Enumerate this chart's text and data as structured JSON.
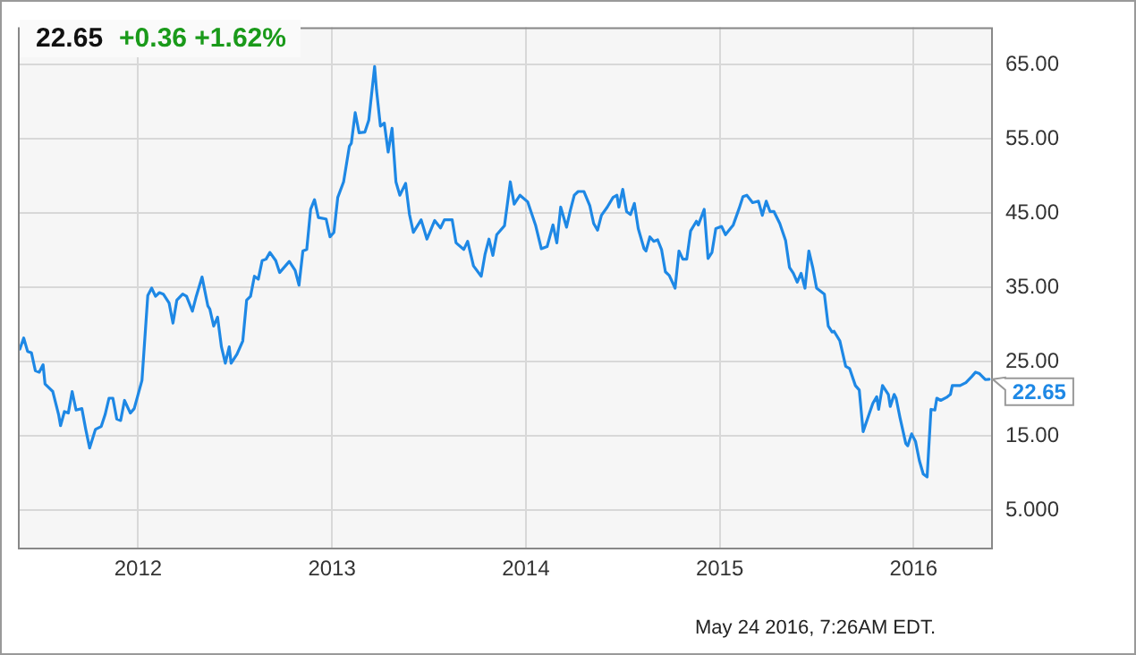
{
  "chart_data": {
    "type": "line",
    "title": "22.65",
    "subtitle": "+0.36 +1.62%",
    "annotations": [
      "May 24 2016, 7:26AM EDT.",
      {
        "text": "22.65",
        "x": 2016.39,
        "y": 22.65
      }
    ],
    "x": [
      2011.39,
      2011.41,
      2011.43,
      2011.45,
      2011.47,
      2011.49,
      2011.51,
      2011.52,
      2011.56,
      2011.59,
      2011.6,
      2011.62,
      2011.64,
      2011.66,
      2011.68,
      2011.71,
      2011.73,
      2011.75,
      2011.78,
      2011.81,
      2011.83,
      2011.85,
      2011.87,
      2011.89,
      2011.91,
      2011.93,
      2011.96,
      2011.98,
      2012.02,
      2012.05,
      2012.07,
      2012.09,
      2012.11,
      2012.13,
      2012.16,
      2012.18,
      2012.2,
      2012.23,
      2012.25,
      2012.28,
      2012.3,
      2012.33,
      2012.36,
      2012.37,
      2012.39,
      2012.41,
      2012.43,
      2012.45,
      2012.47,
      2012.48,
      2012.51,
      2012.54,
      2012.56,
      2012.58,
      2012.6,
      2012.62,
      2012.64,
      2012.66,
      2012.68,
      2012.71,
      2012.73,
      2012.75,
      2012.78,
      2012.81,
      2012.83,
      2012.85,
      2012.87,
      2012.89,
      2012.91,
      2012.93,
      2012.97,
      2012.99,
      2013.01,
      2013.03,
      2013.06,
      2013.09,
      2013.1,
      2013.12,
      2013.14,
      2013.17,
      2013.19,
      2013.22,
      2013.23,
      2013.25,
      2013.27,
      2013.29,
      2013.31,
      2013.33,
      2013.35,
      2013.38,
      2013.4,
      2013.42,
      2013.46,
      2013.49,
      2013.53,
      2013.56,
      2013.58,
      2013.62,
      2013.64,
      2013.68,
      2013.7,
      2013.73,
      2013.77,
      2013.79,
      2013.81,
      2013.83,
      2013.85,
      2013.89,
      2013.92,
      2013.94,
      2013.97,
      2014.01,
      2014.05,
      2014.08,
      2014.11,
      2014.14,
      2014.16,
      2014.18,
      2014.21,
      2014.23,
      2014.25,
      2014.27,
      2014.3,
      2014.33,
      2014.35,
      2014.37,
      2014.39,
      2014.42,
      2014.45,
      2014.47,
      2014.48,
      2014.5,
      2014.52,
      2014.54,
      2014.56,
      2014.58,
      2014.61,
      2014.62,
      2014.64,
      2014.66,
      2014.68,
      2014.7,
      2014.72,
      2014.74,
      2014.77,
      2014.79,
      2014.81,
      2014.83,
      2014.85,
      2014.88,
      2014.89,
      2014.92,
      2014.94,
      2014.96,
      2014.98,
      2015.01,
      2015.03,
      2015.07,
      2015.1,
      2015.12,
      2015.14,
      2015.17,
      2015.2,
      2015.22,
      2015.24,
      2015.26,
      2015.28,
      2015.31,
      2015.34,
      2015.36,
      2015.38,
      2015.4,
      2015.42,
      2015.44,
      2015.46,
      2015.48,
      2015.5,
      2015.54,
      2015.56,
      2015.58,
      2015.59,
      2015.62,
      2015.65,
      2015.67,
      2015.7,
      2015.72,
      2015.74,
      2015.77,
      2015.79,
      2015.81,
      2015.82,
      2015.84,
      2015.87,
      2015.88,
      2015.9,
      2015.91,
      2015.93,
      2015.96,
      2015.97,
      2015.99,
      2016.01,
      2016.03,
      2016.05,
      2016.07,
      2016.09,
      2016.11,
      2016.12,
      2016.14,
      2016.17,
      2016.19,
      2016.2,
      2016.24,
      2016.27,
      2016.3,
      2016.32,
      2016.34,
      2016.37,
      2016.39
    ],
    "series": [
      {
        "color": "#1e88e5",
        "values": [
          26.7,
          28.2,
          26.4,
          26.2,
          23.8,
          23.6,
          24.6,
          22.0,
          21.0,
          17.9,
          16.4,
          18.3,
          18.1,
          21.0,
          18.5,
          18.7,
          15.9,
          13.4,
          15.9,
          16.3,
          17.9,
          20.1,
          20.1,
          17.3,
          17.1,
          19.8,
          18.1,
          18.7,
          22.5,
          33.9,
          34.9,
          33.8,
          34.3,
          34.1,
          32.9,
          30.2,
          33.3,
          34.1,
          33.8,
          31.8,
          33.8,
          36.4,
          32.5,
          32.1,
          29.8,
          31.0,
          27.0,
          24.8,
          27.0,
          24.8,
          26.0,
          27.8,
          33.3,
          33.8,
          36.5,
          36.1,
          38.6,
          38.8,
          39.7,
          38.6,
          37.0,
          37.6,
          38.5,
          37.3,
          35.3,
          39.9,
          40.1,
          45.5,
          46.8,
          44.4,
          44.2,
          41.8,
          42.4,
          47.1,
          49.2,
          54.0,
          54.4,
          58.5,
          55.8,
          55.9,
          57.5,
          64.7,
          61.5,
          56.7,
          57.1,
          53.2,
          56.4,
          49.2,
          47.4,
          49.0,
          44.8,
          42.4,
          44.1,
          41.5,
          44.0,
          43.0,
          44.1,
          44.1,
          41.0,
          40.1,
          41.2,
          37.9,
          36.5,
          39.5,
          41.5,
          39.3,
          42.1,
          43.3,
          49.2,
          46.2,
          47.4,
          46.5,
          43.4,
          40.2,
          40.5,
          43.4,
          41.0,
          45.8,
          43.1,
          45.4,
          47.4,
          47.9,
          47.9,
          46.0,
          43.6,
          42.7,
          44.7,
          45.8,
          47.1,
          47.4,
          45.8,
          48.2,
          45.2,
          44.8,
          46.3,
          42.9,
          40.2,
          39.9,
          41.8,
          41.2,
          41.4,
          40.1,
          37.1,
          36.6,
          34.9,
          39.9,
          38.8,
          38.8,
          42.6,
          43.9,
          43.4,
          45.5,
          38.9,
          39.7,
          42.9,
          43.2,
          42.1,
          43.4,
          45.6,
          47.2,
          47.4,
          46.4,
          46.6,
          44.7,
          46.6,
          45.2,
          45.2,
          43.6,
          41.3,
          37.7,
          36.9,
          35.7,
          36.9,
          34.9,
          39.9,
          37.7,
          34.9,
          34.1,
          29.8,
          29.0,
          29.1,
          27.8,
          24.4,
          24.1,
          21.8,
          21.2,
          15.6,
          17.9,
          19.4,
          20.3,
          18.6,
          21.8,
          20.6,
          19.0,
          20.6,
          20.1,
          17.5,
          14.0,
          13.7,
          15.3,
          14.3,
          11.7,
          9.9,
          9.5,
          18.6,
          18.5,
          20.1,
          19.8,
          20.2,
          20.6,
          21.8,
          21.8,
          22.2,
          23.0,
          23.6,
          23.4,
          22.6,
          22.65
        ]
      }
    ],
    "xlim": [
      2011.38,
      2016.4
    ],
    "xticks": [
      2012,
      2013,
      2014,
      2015,
      2016
    ],
    "ylim": [
      0,
      70
    ],
    "yticks": [
      {
        "value": 5,
        "label": "5.000"
      },
      {
        "value": 15,
        "label": "15.00"
      },
      {
        "value": 25,
        "label": "25.00"
      },
      {
        "value": 35,
        "label": "35.00"
      },
      {
        "value": 45,
        "label": "45.00"
      },
      {
        "value": 55,
        "label": "55.00"
      },
      {
        "value": 65,
        "label": "65.00"
      }
    ],
    "grid": true,
    "legend": false,
    "marker": "none",
    "line_style": "solid"
  }
}
